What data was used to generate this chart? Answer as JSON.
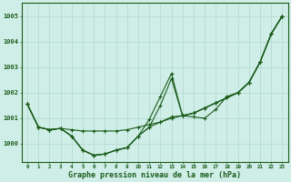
{
  "background_color": "#d0eee8",
  "grid_color": "#b0d8cc",
  "line_color": "#1a5c1a",
  "xlabel": "Graphe pression niveau de la mer (hPa)",
  "x_ticks": [
    0,
    1,
    2,
    3,
    4,
    5,
    6,
    7,
    8,
    9,
    10,
    11,
    12,
    13,
    14,
    15,
    16,
    17,
    18,
    19,
    20,
    21,
    22,
    23
  ],
  "ylim": [
    999.3,
    1005.5
  ],
  "yticks": [
    1000,
    1001,
    1002,
    1003,
    1004,
    1005
  ],
  "series": [
    [
      1001.55,
      1000.65,
      1000.55,
      1000.6,
      1000.55,
      1000.5,
      1000.5,
      1000.5,
      1000.5,
      1000.55,
      1000.65,
      1000.75,
      1000.85,
      1001.0,
      1001.1,
      1001.2,
      1001.4,
      1001.6,
      1001.8,
      1002.0,
      1002.4,
      1003.2,
      1004.3,
      1005.0
    ],
    [
      1001.55,
      1000.65,
      1000.55,
      1000.6,
      1000.3,
      999.75,
      999.55,
      999.6,
      999.75,
      999.85,
      1000.3,
      1000.65,
      1000.85,
      1001.05,
      1001.1,
      1001.2,
      1001.4,
      1001.6,
      1001.8,
      1002.0,
      1002.4,
      1003.2,
      1004.3,
      1005.0
    ],
    [
      1001.55,
      1000.65,
      1000.55,
      1000.6,
      1000.3,
      999.75,
      999.55,
      999.6,
      999.75,
      999.85,
      1000.3,
      1000.65,
      1001.5,
      1002.55,
      1001.1,
      1001.2,
      1001.4,
      1001.6,
      1001.8,
      1002.0,
      1002.4,
      1003.2,
      1004.3,
      1005.0
    ],
    [
      1001.55,
      1000.65,
      1000.55,
      1000.6,
      1000.3,
      999.75,
      999.55,
      999.6,
      999.75,
      999.85,
      1000.3,
      1000.95,
      1001.85,
      1002.75,
      1001.1,
      1001.05,
      1001.0,
      1001.35,
      1001.85,
      1002.0,
      1002.4,
      1003.2,
      1004.3,
      1005.0
    ]
  ]
}
